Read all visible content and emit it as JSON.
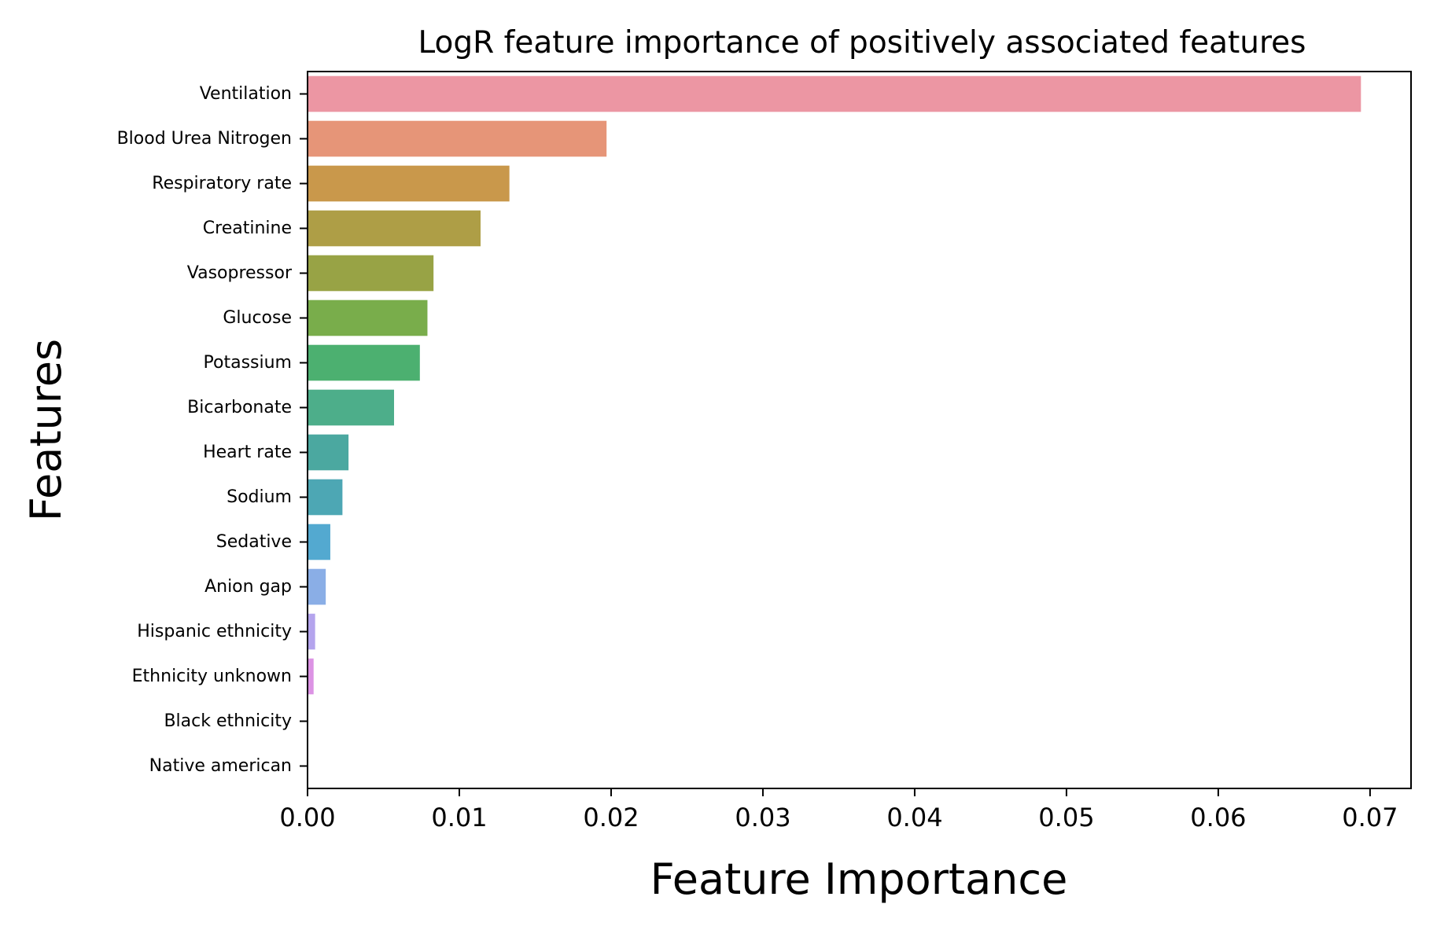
{
  "chart_data": {
    "type": "bar",
    "orientation": "horizontal",
    "title": "LogR feature importance of positively associated features",
    "xlabel": "Feature Importance",
    "ylabel": "Features",
    "xlim": [
      0,
      0.0727
    ],
    "xticks": [
      "0.00",
      "0.01",
      "0.02",
      "0.03",
      "0.04",
      "0.05",
      "0.06",
      "0.07"
    ],
    "xtick_values": [
      0,
      0.01,
      0.02,
      0.03,
      0.04,
      0.05,
      0.06,
      0.07
    ],
    "grid": false,
    "legend": "none",
    "categories": [
      "Ventilation",
      "Blood Urea Nitrogen",
      "Respiratory rate",
      "Creatinine",
      "Vasopressor",
      "Glucose",
      "Potassium",
      "Bicarbonate",
      "Heart rate",
      "Sodium",
      "Sedative",
      "Anion gap",
      "Hispanic ethnicity",
      "Ethnicity unknown",
      "Black ethnicity",
      "Native american"
    ],
    "values": [
      0.0694,
      0.0197,
      0.0133,
      0.0114,
      0.0083,
      0.0079,
      0.0074,
      0.0057,
      0.0027,
      0.0023,
      0.0015,
      0.0012,
      0.0005,
      0.0004,
      0.0,
      0.0
    ],
    "colors": [
      "#ec96a3",
      "#e69578",
      "#c9984b",
      "#ae9e46",
      "#98a345",
      "#79ad4b",
      "#4cb070",
      "#4dae8a",
      "#4ba8a0",
      "#4da7b4",
      "#53a9d0",
      "#8aaee6",
      "#b4a4ed",
      "#dc93e4",
      "#ec91cc",
      "#ef93b5"
    ]
  }
}
